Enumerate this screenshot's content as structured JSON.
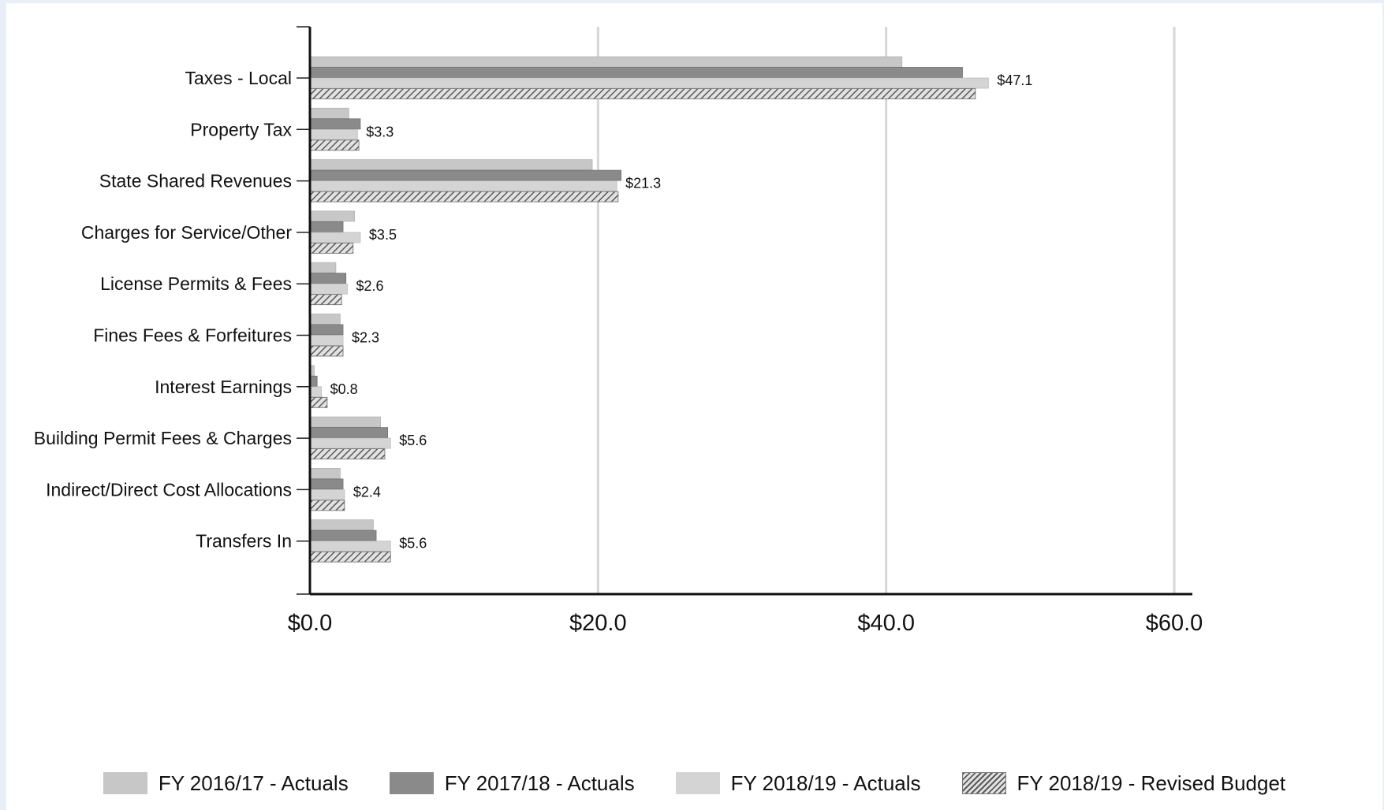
{
  "chart_data": {
    "type": "bar",
    "orientation": "horizontal",
    "categories": [
      "Taxes - Local",
      "Property Tax",
      "State Shared Revenues",
      "Charges for Service/Other",
      "License Permits & Fees",
      "Fines Fees & Forfeitures",
      "Interest Earnings",
      "Building Permit Fees & Charges",
      "Indirect/Direct Cost Allocations",
      "Transfers In"
    ],
    "series": [
      {
        "name": "FY 2016/17 - Actuals",
        "color": "#c7c7c7",
        "values": [
          41.1,
          2.7,
          19.6,
          3.1,
          1.8,
          2.1,
          0.3,
          4.9,
          2.1,
          4.4
        ]
      },
      {
        "name": "FY 2017/18 - Actuals",
        "color": "#8a8a8a",
        "values": [
          45.3,
          3.5,
          21.6,
          2.3,
          2.5,
          2.3,
          0.5,
          5.4,
          2.3,
          4.6
        ]
      },
      {
        "name": "FY 2018/19 - Actuals",
        "color": "#d4d4d4",
        "values": [
          47.1,
          3.3,
          21.3,
          3.5,
          2.6,
          2.3,
          0.8,
          5.6,
          2.4,
          5.6
        ]
      },
      {
        "name": "FY 2018/19 - Revised Budget",
        "color": "hatched",
        "values": [
          46.2,
          3.4,
          21.4,
          3.0,
          2.2,
          2.3,
          1.2,
          5.2,
          2.4,
          5.6
        ]
      }
    ],
    "data_labels": [
      "$47.1",
      "$3.3",
      "$21.3",
      "$3.5",
      "$2.6",
      "$2.3",
      "$0.8",
      "$5.6",
      "$2.4",
      "$5.6"
    ],
    "x_ticks": [
      0,
      20,
      40,
      60
    ],
    "x_tick_labels": [
      "$0.0",
      "$20.0",
      "$40.0",
      "$60.0"
    ],
    "xlim": [
      0,
      60
    ],
    "title": "",
    "xlabel": "",
    "ylabel": "",
    "grid": true,
    "legend_position": "bottom"
  }
}
